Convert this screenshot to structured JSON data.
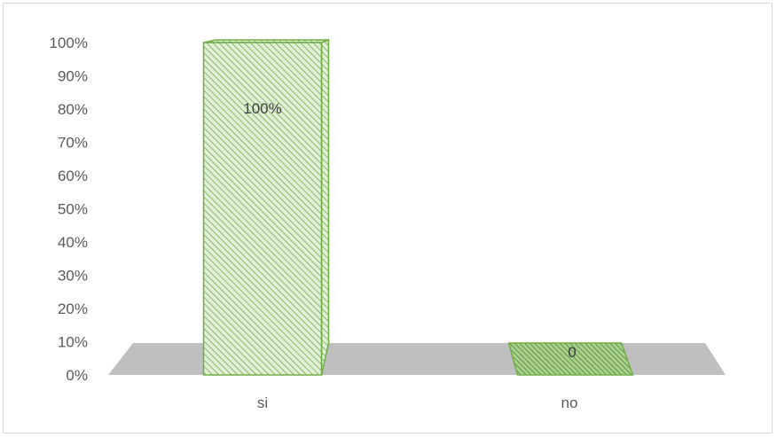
{
  "chart_data": {
    "type": "bar",
    "style": "3d-column",
    "categories": [
      "si",
      "no"
    ],
    "values": [
      100,
      0
    ],
    "data_labels": [
      "100%",
      "0"
    ],
    "ylim": [
      0,
      100
    ],
    "yticks": [
      "0%",
      "10%",
      "20%",
      "30%",
      "40%",
      "50%",
      "60%",
      "70%",
      "80%",
      "90%",
      "100%"
    ],
    "grid": false,
    "legend": "none",
    "colors": {
      "bar_fill": "#e2efd9",
      "bar_hatch": "#70ad47",
      "bar_edge": "#70ad47",
      "floor": "#bfbfbf",
      "text": "#595959"
    }
  }
}
